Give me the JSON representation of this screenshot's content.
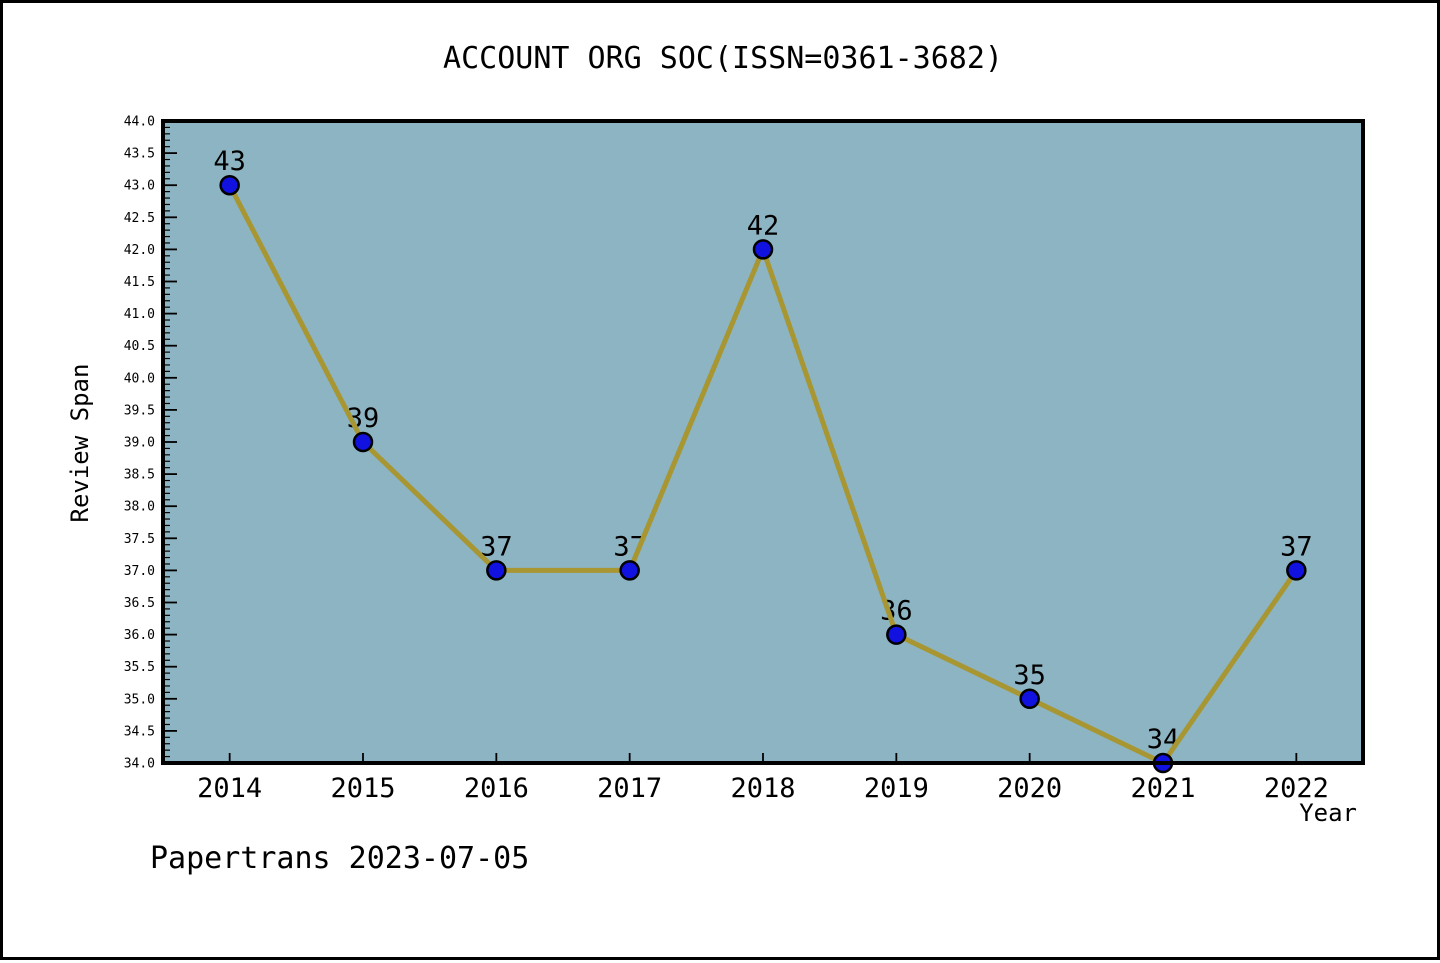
{
  "title": "ACCOUNT ORG SOC(ISSN=0361-3682)",
  "footer": "Papertrans 2023-07-05",
  "chart_data": {
    "type": "line",
    "title": "ACCOUNT ORG SOC(ISSN=0361-3682)",
    "xlabel": "Year",
    "ylabel": "Review Span",
    "categories": [
      2014,
      2015,
      2016,
      2017,
      2018,
      2019,
      2020,
      2021,
      2022
    ],
    "values": [
      43,
      39,
      37,
      37,
      42,
      36,
      35,
      34,
      37
    ],
    "point_labels": [
      "43",
      "39",
      "37",
      "37",
      "42",
      "36",
      "35",
      "34",
      "37"
    ],
    "ylim": [
      34.0,
      44.0
    ],
    "xlim": [
      2013.5,
      2022.5
    ],
    "y_major_step": 0.5,
    "y_minor_step": 0.1,
    "y_tick_labels": [
      "44.0",
      "43.5",
      "43.0",
      "42.5",
      "42.0",
      "41.5",
      "41.0",
      "40.5",
      "40.0",
      "39.5",
      "39.0",
      "38.5",
      "38.0",
      "37.5",
      "37.0",
      "36.5",
      "36.0",
      "35.5",
      "35.0",
      "34.5",
      "34.0"
    ],
    "x_tick_labels": [
      "2014",
      "2015",
      "2016",
      "2017",
      "2018",
      "2019",
      "2020",
      "2021",
      "2022"
    ],
    "grid": false,
    "legend": null,
    "colors": {
      "line": "#A79632",
      "marker_fill": "#1212E0",
      "marker_edge": "#000000",
      "plot_background": "#8DB4C2",
      "figure_background": "#FFFFFF",
      "frame": "#000000",
      "text": "#000000"
    }
  }
}
